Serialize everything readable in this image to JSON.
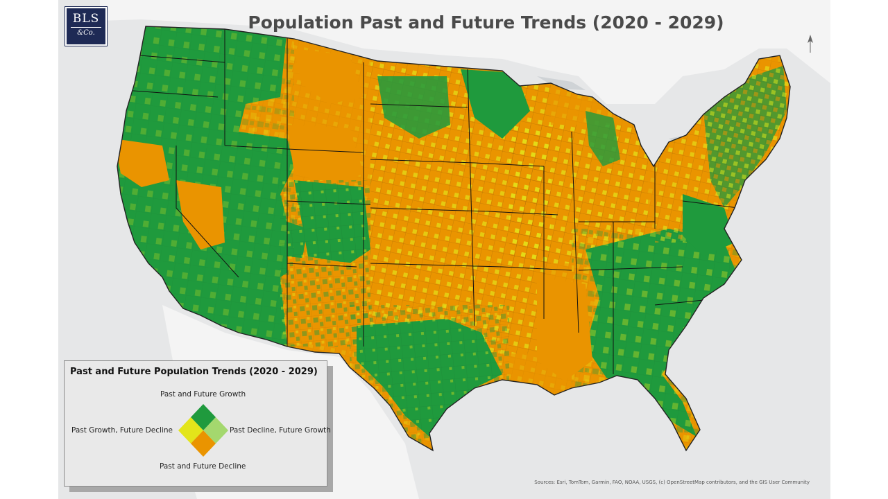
{
  "map": {
    "title": "Population Past and Future Trends (2020 - 2029)",
    "sources": "Sources: Esri, TomTom, Garmin, FAO, NOAA, USGS, (c) OpenStreetMap contributors, and the GIS User Community"
  },
  "logo": {
    "line1": "BLS",
    "line2": "&Co."
  },
  "legend": {
    "title": "Past and Future Population Trends (2020 - 2029)",
    "top": "Past and Future Growth",
    "left": "Past Growth, Future Decline",
    "right": "Past Decline, Future Growth",
    "bottom": "Past and Future Decline"
  },
  "colors": {
    "growth_growth": "#1f9a3d",
    "growth_decline": "#e3e51a",
    "decline_growth": "#a4d86e",
    "decline_decline": "#ea9400",
    "background": "#e6e7e8",
    "land_outside": "#f4f4f4",
    "water": "#cfd3d6"
  },
  "icons": {
    "north_arrow": "north-arrow-icon"
  }
}
